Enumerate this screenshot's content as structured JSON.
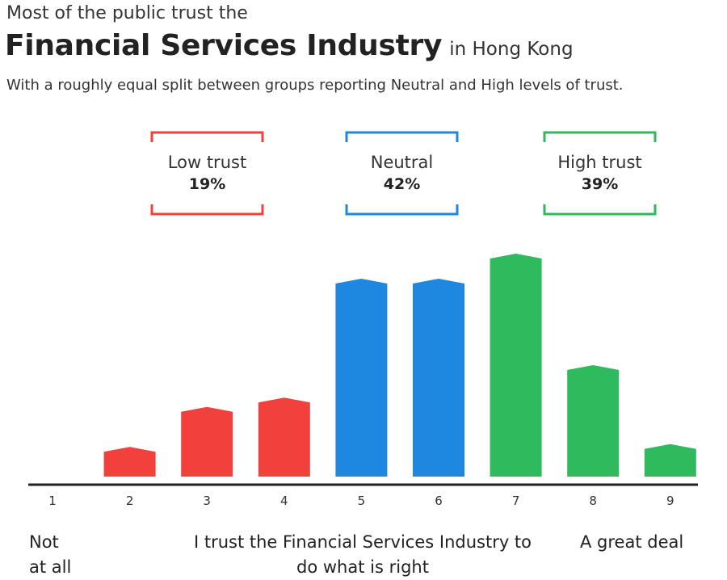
{
  "header": {
    "pretitle": "Most of the public trust the",
    "title": "Financial Services Industry",
    "title_suffix": "in Hong Kong",
    "subtitle": "With a roughly equal split between groups reporting Neutral and High levels of trust."
  },
  "groups": [
    {
      "label": "Low trust",
      "percent": "19%",
      "color": "#f2413d"
    },
    {
      "label": "Neutral",
      "percent": "42%",
      "color": "#1e88e0"
    },
    {
      "label": "High trust",
      "percent": "39%",
      "color": "#2fba5e"
    }
  ],
  "footer": {
    "left": [
      "Not",
      "at all"
    ],
    "center": [
      "I trust the Financial Services Industry to",
      "do what is right"
    ],
    "right": "A great deal"
  },
  "chart_data": {
    "type": "bar",
    "categories": [
      "1",
      "2",
      "3",
      "4",
      "5",
      "6",
      "7",
      "8",
      "9"
    ],
    "values": [
      0,
      3.2,
      7.5,
      8.5,
      21.3,
      21.3,
      24.0,
      12.0,
      3.5
    ],
    "bar_groups": [
      "Low trust",
      "Low trust",
      "Low trust",
      "Low trust",
      "Neutral",
      "Neutral",
      "High trust",
      "High trust",
      "High trust"
    ],
    "ylim": [
      0,
      25
    ],
    "grid": false
  }
}
